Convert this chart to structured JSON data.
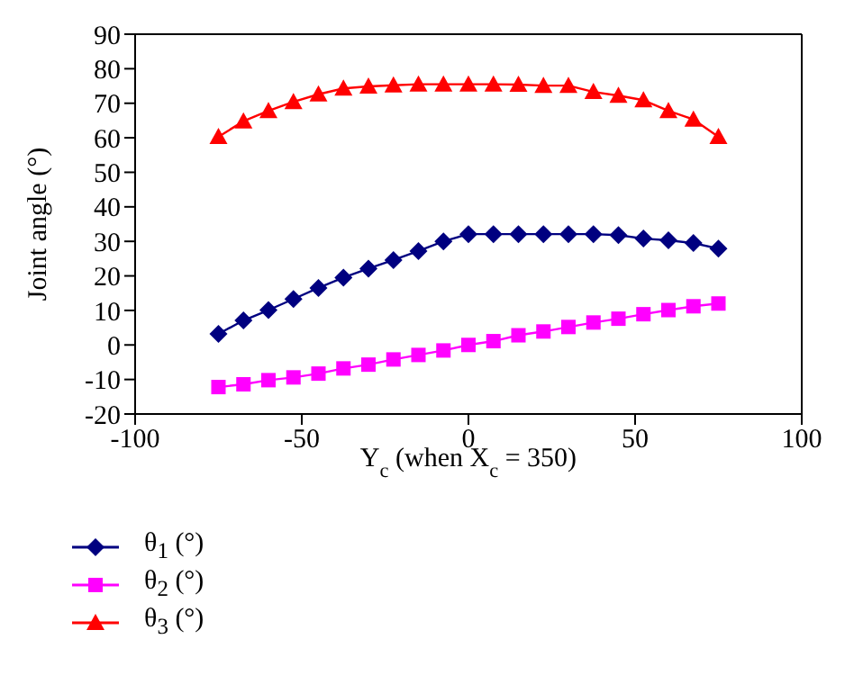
{
  "chart_data": {
    "type": "line",
    "xlabel": "Y$_{c}$ (when X$_{c}$ = 350)",
    "ylabel": "Joint angle (°)",
    "x": [
      -75,
      -67.5,
      -60,
      -52.5,
      -45,
      -37.5,
      -30,
      -22.5,
      -15,
      -7.5,
      0,
      7.5,
      15,
      22.5,
      30,
      37.5,
      45,
      52.5,
      60,
      67.5,
      75
    ],
    "xlim": [
      -100,
      100
    ],
    "xticks": [
      -100,
      -50,
      0,
      50,
      100
    ],
    "ylim": [
      -20,
      90
    ],
    "yticks": [
      -20,
      -10,
      0,
      10,
      20,
      30,
      40,
      50,
      60,
      70,
      80,
      90
    ],
    "grid": false,
    "legend": "bottom left",
    "series": [
      {
        "name": "θ$_{1}$ (°)",
        "color": "#000080",
        "marker": "diamond",
        "values": [
          3.2,
          7.1,
          10.1,
          13.3,
          16.5,
          19.5,
          22.1,
          24.6,
          27.2,
          30.0,
          32.1,
          32.1,
          32.1,
          32.1,
          32.1,
          32.1,
          31.8,
          30.8,
          30.3,
          29.5,
          27.9
        ]
      },
      {
        "name": "θ$_{2}$ (°)",
        "color": "#ff00ff",
        "marker": "square",
        "values": [
          -12.2,
          -11.4,
          -10.2,
          -9.4,
          -8.3,
          -6.8,
          -5.7,
          -4.2,
          -2.9,
          -1.6,
          0,
          1.1,
          2.8,
          3.9,
          5.2,
          6.5,
          7.6,
          8.9,
          10.1,
          11.2,
          12.0
        ]
      },
      {
        "name": "θ$_{3}$ (°)",
        "color": "#ff0000",
        "marker": "triangle",
        "values": [
          60.3,
          64.8,
          67.8,
          70.4,
          72.6,
          74.3,
          74.9,
          75.2,
          75.5,
          75.5,
          75.5,
          75.5,
          75.4,
          75.1,
          75.1,
          73.3,
          72.2,
          70.9,
          67.8,
          65.3,
          60.3
        ]
      }
    ]
  }
}
